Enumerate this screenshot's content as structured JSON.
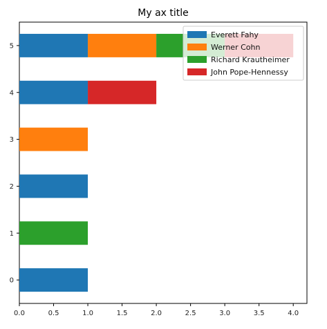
{
  "chart_data": {
    "type": "bar",
    "orientation": "horizontal",
    "stacked": true,
    "title": "My ax title",
    "xlabel": "",
    "ylabel": "",
    "categories": [
      "0",
      "1",
      "2",
      "3",
      "4",
      "5"
    ],
    "xlim": [
      0,
      4.2
    ],
    "xticks": [
      "0.0",
      "0.5",
      "1.0",
      "1.5",
      "2.0",
      "2.5",
      "3.0",
      "3.5",
      "4.0"
    ],
    "grid": false,
    "legend_position": "top-right",
    "series": [
      {
        "name": "Everett Fahy",
        "color": "#1f77b4",
        "values": [
          1,
          0,
          1,
          0,
          1,
          1
        ]
      },
      {
        "name": "Werner Cohn",
        "color": "#ff7f0e",
        "values": [
          0,
          0,
          0,
          1,
          0,
          1
        ]
      },
      {
        "name": "Richard Krautheimer",
        "color": "#2ca02c",
        "values": [
          0,
          1,
          0,
          0,
          0,
          1
        ]
      },
      {
        "name": "John Pope-Hennessy",
        "color": "#d62728",
        "values": [
          0,
          0,
          0,
          0,
          1,
          1
        ]
      }
    ]
  }
}
